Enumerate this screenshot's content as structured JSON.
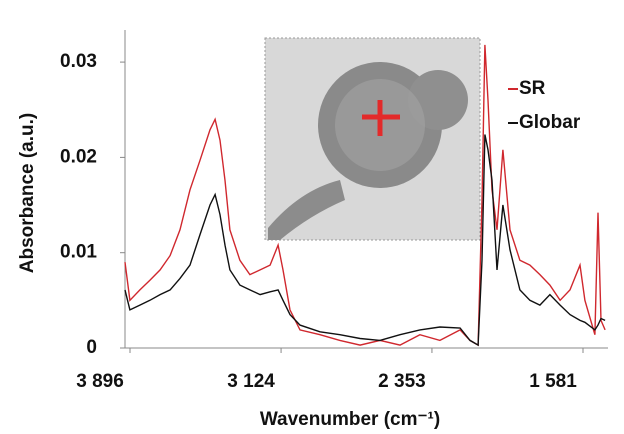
{
  "chart_data": {
    "type": "line",
    "x_label": "Wavenumber (cm⁻¹)",
    "y_label": "Absorbance (a.u.)",
    "x": [
      3768,
      3743,
      3692,
      3641,
      3589,
      3538,
      3487,
      3436,
      3385,
      3334,
      3308,
      3283,
      3257,
      3232,
      3181,
      3130,
      3078,
      3027,
      2986,
      2961,
      2925,
      2874,
      2772,
      2670,
      2567,
      2465,
      2363,
      2261,
      2159,
      2056,
      2005,
      1964,
      1944,
      1929,
      1913,
      1893,
      1867,
      1837,
      1801,
      1750,
      1699,
      1648,
      1597,
      1545,
      1494,
      1443,
      1418,
      1367,
      1351,
      1336,
      1315
    ],
    "series": [
      {
        "name": "SR",
        "color": "#d0282e",
        "values": [
          0.009,
          0.005,
          0.0061,
          0.0071,
          0.0082,
          0.0097,
          0.0124,
          0.0166,
          0.0197,
          0.0229,
          0.024,
          0.0218,
          0.0176,
          0.0124,
          0.0092,
          0.0077,
          0.0082,
          0.0087,
          0.0108,
          0.0082,
          0.004,
          0.0019,
          0.0014,
          0.0008,
          0.0003,
          0.0008,
          0.0003,
          0.0014,
          0.0008,
          0.0019,
          0.0008,
          0.0003,
          0.0155,
          0.0318,
          0.026,
          0.0166,
          0.0124,
          0.0208,
          0.0124,
          0.0092,
          0.0087,
          0.0077,
          0.0066,
          0.005,
          0.0061,
          0.0087,
          0.005,
          0.0014,
          0.0142,
          0.0029,
          0.0019
        ]
      },
      {
        "name": "Globar",
        "color": "#111111",
        "values": [
          0.0061,
          0.004,
          0.0045,
          0.005,
          0.0056,
          0.0061,
          0.0073,
          0.0087,
          0.0119,
          0.015,
          0.0161,
          0.014,
          0.0108,
          0.0082,
          0.0066,
          0.0061,
          0.0056,
          0.0059,
          0.0061,
          0.005,
          0.0035,
          0.0024,
          0.0017,
          0.0014,
          0.001,
          0.0008,
          0.0014,
          0.0019,
          0.0022,
          0.0021,
          0.0008,
          0.0003,
          0.0092,
          0.0224,
          0.0208,
          0.0176,
          0.0082,
          0.015,
          0.0103,
          0.0061,
          0.005,
          0.0045,
          0.0056,
          0.0045,
          0.0035,
          0.0029,
          0.0027,
          0.0019,
          0.0024,
          0.0031,
          0.0029
        ]
      }
    ],
    "xlim": [
      3896,
      1300
    ],
    "xticks": [
      {
        "value": 3896,
        "label": "3 896"
      },
      {
        "value": 3124,
        "label": "3 124"
      },
      {
        "value": 2353,
        "label": "2 353"
      },
      {
        "value": 1581,
        "label": "1 581"
      }
    ],
    "ylim": [
      0,
      0.033
    ],
    "yticks": [
      0,
      0.01,
      0.02,
      0.03
    ],
    "legend": "upper-right"
  }
}
